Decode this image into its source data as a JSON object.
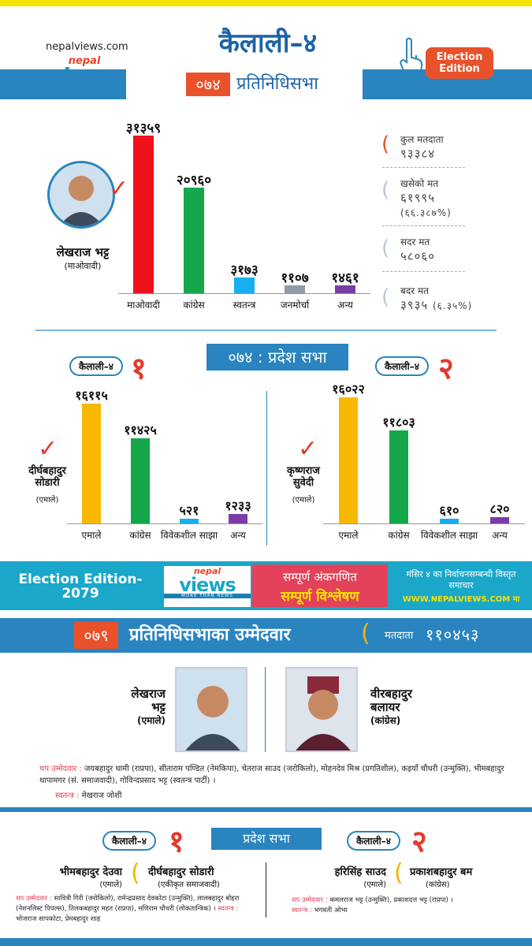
{
  "header": {
    "site": "nepalviews.com",
    "logo_nepal": "nepal",
    "logo_views": "views",
    "logo_tagline": "MORE THAN NEWS",
    "title": "कैलाली–४",
    "hor_code": "०७४",
    "hor_label": "प्रतिनिधिसभा",
    "edition_badge": "Election Edition"
  },
  "federal_2074": {
    "winner_name": "लेखराज भट्ट",
    "winner_party": "(माओवादी)",
    "chart_data": {
      "type": "bar",
      "categories": [
        "माओवादी",
        "कांग्रेस",
        "स्वतन्त्र",
        "जनमोर्चा",
        "अन्य"
      ],
      "values": [
        31359,
        20960,
        3173,
        1107,
        1461
      ],
      "value_labels": [
        "३१३५९",
        "२०९६०",
        "३१७३",
        "११०७",
        "१४६१"
      ],
      "colors": [
        "#f0101a",
        "#14a84a",
        "#18aef0",
        "#8f9aa8",
        "#7b3ca6"
      ]
    },
    "stats": [
      {
        "label": "कुल मतदाता",
        "value": "९३३८४",
        "extra": ""
      },
      {
        "label": "खसेको मत",
        "value": "६१९९५",
        "extra": "(६६.३८७%)"
      },
      {
        "label": "सदर मत",
        "value": "५८०६०",
        "extra": ""
      },
      {
        "label": "बदर मत",
        "value": "३९३५",
        "extra": "(६.३५%)"
      }
    ]
  },
  "pradesh_2074": {
    "label": "०७४ : प्रदेश सभा",
    "constituencies": [
      {
        "tag": "कैलाली–४",
        "number": "१",
        "winner_name": "दीर्घबहादुर सोडारी",
        "winner_party": "(एमाले)",
        "chart_data": {
          "type": "bar",
          "categories": [
            "एमाले",
            "कांग्रेस",
            "विवेकशील साझा",
            "अन्य"
          ],
          "values": [
            16115,
            11425,
            521,
            1233
          ],
          "value_labels": [
            "१६११५",
            "११४२५",
            "५२१",
            "१२३३"
          ],
          "colors": [
            "#f9b800",
            "#14a84a",
            "#18aef0",
            "#7b3ca6"
          ]
        }
      },
      {
        "tag": "कैलाली–४",
        "number": "२",
        "winner_name": "कृष्णराज सुवेदी",
        "winner_party": "(एमाले)",
        "chart_data": {
          "type": "bar",
          "categories": [
            "एमाले",
            "कांग्रेस",
            "विवेकशील साझा",
            "अन्य"
          ],
          "values": [
            16022,
            11803,
            610,
            820
          ],
          "value_labels": [
            "१६०२२",
            "११८०३",
            "६१०",
            "८२०"
          ],
          "colors": [
            "#f9b800",
            "#14a84a",
            "#18aef0",
            "#7b3ca6"
          ]
        }
      }
    ]
  },
  "banner": {
    "left": "Election Edition- 2079",
    "red_line1": "सम्पूर्ण अंकगणित",
    "red_line2": "सम्पूर्ण विश्लेषण",
    "right_line1": "मंसिर ४ का निर्वाचनसम्बन्धी विस्तृत समाचार",
    "right_line2": "WWW.NEPALVIEWS.COM मा"
  },
  "federal_2079": {
    "code": "०७९",
    "label": "प्रतिनिधिसभाका उम्मेदवार",
    "voters_label": "मतदाता",
    "voters_value": "११०४५३",
    "candidates": [
      {
        "name_l1": "लेखराज",
        "name_l2": "भट्ट",
        "party": "(एमाले)"
      },
      {
        "name_l1": "वीरबहादुर",
        "name_l2": "बलायर",
        "party": "(कांग्रेस)"
      }
    ],
    "other_label": "थप उम्मेदवार :",
    "others": "जयबहादुर धामी (राप्रपा), सीताराम पण्डित (नेमकिपा), चेतराज साउद (जरोकिलो), मोहनदेव मिश्र (प्रगतिशील), कइयाँ चौधरी (उन्मुक्ति), भीमबहादुर थापामगर (सं. समाजवादी), गोविन्दप्रसाद भट्ट (स्वतन्त्र पार्टी) ।",
    "independent_label": "स्वतन्त्र :",
    "independent": "मेखराज जोशी"
  },
  "pradesh_2079": {
    "label": "प्रदेश सभा",
    "constituencies": [
      {
        "tag": "कैलाली–४",
        "number": "१",
        "c1_name": "भीमबहादुर देउवा",
        "c1_party": "(एमाले)",
        "c2_name": "दीर्घबहादुर सोडारी",
        "c2_party": "(एकीकृत समाजवादी)",
        "other_label": "थप उम्मेदवार :",
        "others": "सावित्री गिरी (जरोकिलो), रामेन्द्रप्रसाद देवकोटा (उन्मुक्ति), लालबहादुर बोहरा (नेशनलिस्ट पिपल्स), तिलकबहादुर महत (राप्रपा), मणिराम चौधरी (लोकतान्त्रिक) ।",
        "independent_label": "स्वतन्त्र :",
        "independent": "भोजराज सापकोटा, प्रेमबहादुर शाह"
      },
      {
        "tag": "कैलाली–४",
        "number": "२",
        "c1_name": "हरिसिंह साउद",
        "c1_party": "(एमाले)",
        "c2_name": "प्रकाशबहादुर बम",
        "c2_party": "(कांग्रेस)",
        "other_label": "थप उम्मेदवार :",
        "others": "कमलराज भट्ट (उन्मुक्ति), प्रकाशदत्त भट्ट (राप्रपा) ।",
        "independent_label": "स्वतन्त्र :",
        "independent": "भगवती ओभा"
      }
    ]
  }
}
